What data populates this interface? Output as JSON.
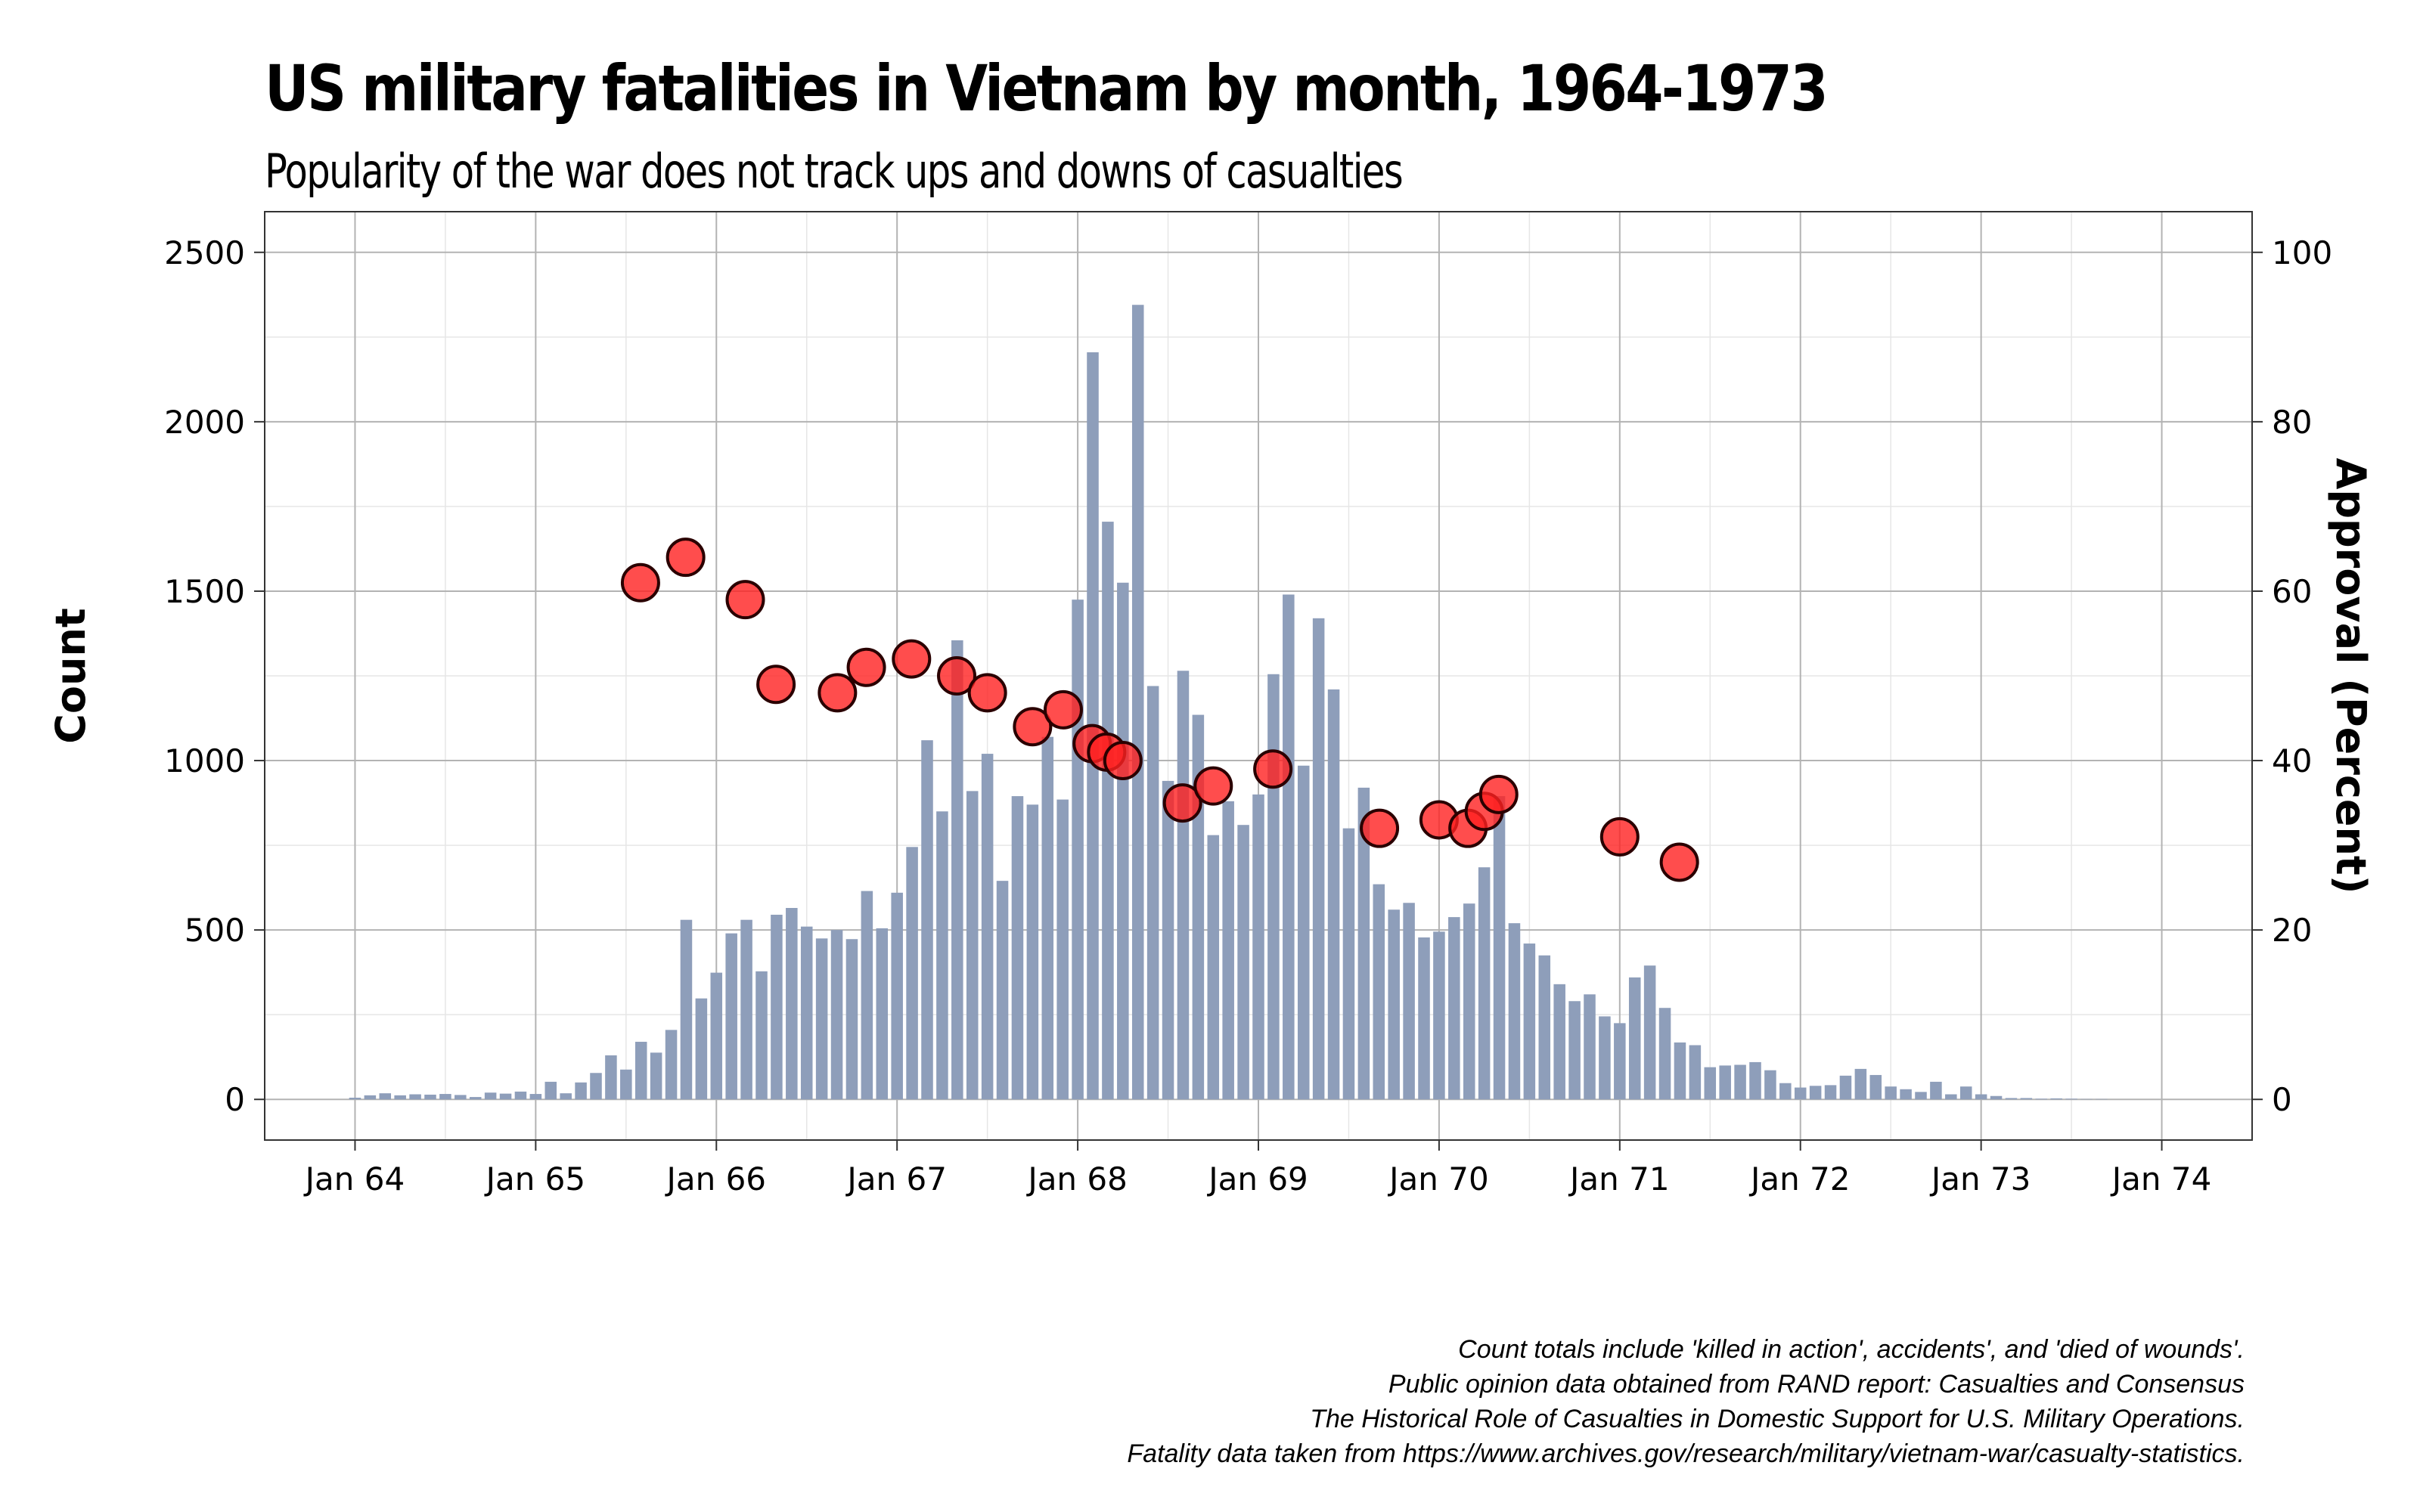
{
  "chart_data": {
    "type": "bar",
    "title": "US military fatalities in Vietnam by month, 1964-1973",
    "subtitle": "Popularity of the war does not track ups and downs of casualties",
    "ylabel": "Count",
    "y2label": "Approval (Percent)",
    "ylim": [
      -120,
      2620
    ],
    "y2lim": [
      -4.8,
      104.8
    ],
    "y_ticks": [
      0,
      500,
      1000,
      1500,
      2000,
      2500
    ],
    "y2_ticks": [
      0,
      20,
      40,
      60,
      80,
      100
    ],
    "x_ticks": [
      {
        "value": 1964,
        "label": "Jan 64"
      },
      {
        "value": 1965,
        "label": "Jan 65"
      },
      {
        "value": 1966,
        "label": "Jan 66"
      },
      {
        "value": 1967,
        "label": "Jan 67"
      },
      {
        "value": 1968,
        "label": "Jan 68"
      },
      {
        "value": 1969,
        "label": "Jan 69"
      },
      {
        "value": 1970,
        "label": "Jan 70"
      },
      {
        "value": 1971,
        "label": "Jan 71"
      },
      {
        "value": 1972,
        "label": "Jan 72"
      },
      {
        "value": 1973,
        "label": "Jan 73"
      },
      {
        "value": 1974,
        "label": "Jan 74"
      }
    ],
    "xlim": [
      1963.5,
      1974.5
    ],
    "grid": true,
    "bar_color": "#8e9eba",
    "point_color": "#ff2020",
    "point_stroke": "#2a0000",
    "bar_start": "1964-01",
    "monthly_fatalities": [
      5,
      12,
      18,
      12,
      15,
      14,
      16,
      13,
      7,
      20,
      17,
      23,
      16,
      52,
      18,
      50,
      78,
      130,
      88,
      170,
      138,
      205,
      530,
      298,
      374,
      490,
      530,
      378,
      545,
      565,
      510,
      475,
      500,
      473,
      615,
      505,
      610,
      745,
      1060,
      850,
      1355,
      910,
      1020,
      645,
      895,
      870,
      1070,
      885,
      1475,
      2205,
      1705,
      1525,
      2345,
      1220,
      940,
      1265,
      1135,
      780,
      880,
      810,
      900,
      1255,
      1490,
      985,
      1420,
      1210,
      800,
      920,
      635,
      560,
      580,
      478,
      495,
      538,
      578,
      685,
      895,
      520,
      460,
      425,
      340,
      290,
      310,
      245,
      225,
      360,
      395,
      270,
      168,
      160,
      95,
      100,
      102,
      110,
      86,
      48,
      35,
      40,
      42,
      70,
      90,
      72,
      38,
      30,
      22,
      52,
      15,
      38,
      15,
      10,
      4,
      4,
      2,
      3,
      2,
      1,
      1,
      0,
      0,
      0
    ],
    "approval_points": [
      {
        "x": 1965.58,
        "y": 61
      },
      {
        "x": 1965.83,
        "y": 64
      },
      {
        "x": 1966.16,
        "y": 59
      },
      {
        "x": 1966.33,
        "y": 49
      },
      {
        "x": 1966.67,
        "y": 48
      },
      {
        "x": 1966.83,
        "y": 51
      },
      {
        "x": 1967.08,
        "y": 52
      },
      {
        "x": 1967.33,
        "y": 50
      },
      {
        "x": 1967.5,
        "y": 48
      },
      {
        "x": 1967.75,
        "y": 44
      },
      {
        "x": 1967.92,
        "y": 46
      },
      {
        "x": 1968.08,
        "y": 42
      },
      {
        "x": 1968.16,
        "y": 41
      },
      {
        "x": 1968.25,
        "y": 40
      },
      {
        "x": 1968.58,
        "y": 35
      },
      {
        "x": 1968.75,
        "y": 37
      },
      {
        "x": 1969.08,
        "y": 39
      },
      {
        "x": 1969.67,
        "y": 32
      },
      {
        "x": 1970.0,
        "y": 33
      },
      {
        "x": 1970.16,
        "y": 32
      },
      {
        "x": 1970.25,
        "y": 34
      },
      {
        "x": 1970.33,
        "y": 36
      },
      {
        "x": 1971.0,
        "y": 31
      },
      {
        "x": 1971.33,
        "y": 28
      }
    ]
  },
  "caption": [
    "Count totals include 'killed in action', accidents', and 'died of wounds'. ",
    "Public opinion data obtained from RAND report: Casualties and Consensus",
    "The Historical Role of Casualties in Domestic Support for U.S. Military Operations. ",
    "Fatality data taken from https://www.archives.gov/research/military/vietnam-war/casualty-statistics."
  ]
}
